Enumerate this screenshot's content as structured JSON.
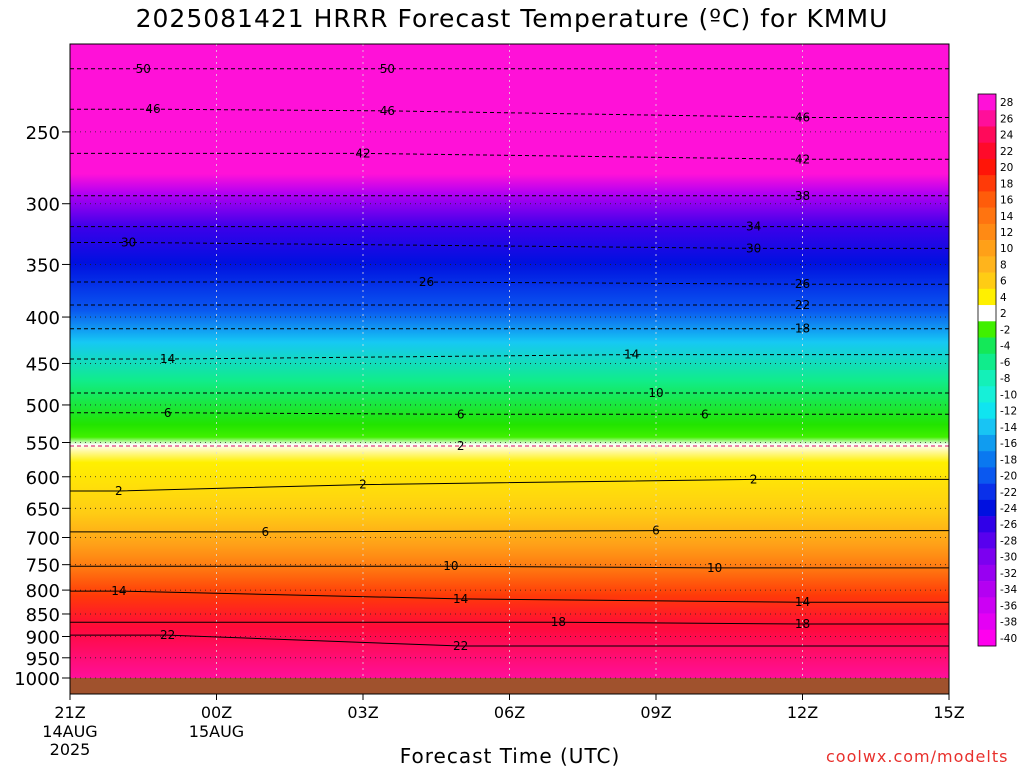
{
  "chart_data": {
    "type": "heatmap",
    "title": "2025081421 HRRR Forecast Temperature (ºC) for KMMU",
    "xlabel": "Forecast Time (UTC)",
    "credit": "coolwx.com/modelts",
    "x_ticks": [
      {
        "label": "21Z",
        "sub": [
          "14AUG",
          "2025"
        ],
        "hour": 0
      },
      {
        "label": "00Z",
        "sub": [
          "15AUG"
        ],
        "hour": 3
      },
      {
        "label": "03Z",
        "sub": [],
        "hour": 6
      },
      {
        "label": "06Z",
        "sub": [],
        "hour": 9
      },
      {
        "label": "09Z",
        "sub": [],
        "hour": 12
      },
      {
        "label": "12Z",
        "sub": [],
        "hour": 15
      },
      {
        "label": "15Z",
        "sub": [],
        "hour": 18
      }
    ],
    "y_ticks": [
      250,
      300,
      350,
      400,
      450,
      500,
      550,
      600,
      650,
      700,
      750,
      800,
      850,
      900,
      950,
      1000
    ],
    "xlim": [
      0,
      18
    ],
    "ylim_hpa": [
      1000,
      200
    ],
    "colorbar": {
      "labels": [
        "28",
        "26",
        "24",
        "22",
        "20",
        "18",
        "16",
        "14",
        "12",
        "10",
        "8",
        "6",
        "4",
        "2",
        "-2",
        "-4",
        "-6",
        "-8",
        "-10",
        "-12",
        "-14",
        "-16",
        "-18",
        "-20",
        "-22",
        "-24",
        "-26",
        "-28",
        "-30",
        "-32",
        "-34",
        "-36",
        "-38",
        "-40"
      ],
      "colors": [
        "#ff11d8",
        "#ff0f9a",
        "#ff0a5a",
        "#ff0a2a",
        "#ff1508",
        "#ff3a08",
        "#ff5c0a",
        "#ff7410",
        "#ff8a14",
        "#ffa018",
        "#ffb41c",
        "#ffcc14",
        "#fff000",
        "#ffffff",
        "#40f000",
        "#14e858",
        "#10ec8c",
        "#14f0b8",
        "#16f0d8",
        "#10e4f0",
        "#18c4f4",
        "#109cf0",
        "#0a78f0",
        "#0a58f0",
        "#0a30ea",
        "#0010e0",
        "#3000e8",
        "#5800ee",
        "#7c00f0",
        "#9800f2",
        "#b400f2",
        "#cc00f4",
        "#e400f4",
        "#ff00ee"
      ]
    },
    "series": [
      {
        "name": "-50",
        "values": [
          {
            "x": 1.5,
            "p": 213
          },
          {
            "x": 6.5,
            "p": 213
          }
        ]
      },
      {
        "name": "-46",
        "values": [
          {
            "x": 1.7,
            "p": 236
          },
          {
            "x": 6.5,
            "p": 237
          },
          {
            "x": 15,
            "p": 241
          }
        ]
      },
      {
        "name": "-42",
        "values": [
          {
            "x": 6,
            "p": 264
          },
          {
            "x": 15,
            "p": 268
          }
        ]
      },
      {
        "name": "-38",
        "values": [
          {
            "x": 15,
            "p": 294
          }
        ]
      },
      {
        "name": "-34",
        "values": [
          {
            "x": 14,
            "p": 318
          }
        ]
      },
      {
        "name": "-30",
        "values": [
          {
            "x": 1.2,
            "p": 331
          },
          {
            "x": 14,
            "p": 336
          }
        ]
      },
      {
        "name": "-26",
        "values": [
          {
            "x": 7.3,
            "p": 366
          },
          {
            "x": 15,
            "p": 368
          }
        ]
      },
      {
        "name": "-22",
        "values": [
          {
            "x": 15,
            "p": 388
          }
        ]
      },
      {
        "name": "-18",
        "values": [
          {
            "x": 15,
            "p": 412
          }
        ]
      },
      {
        "name": "-14",
        "values": [
          {
            "x": 2,
            "p": 445
          },
          {
            "x": 11.5,
            "p": 440
          }
        ]
      },
      {
        "name": "-10",
        "values": [
          {
            "x": 12,
            "p": 485
          }
        ]
      },
      {
        "name": "-6",
        "values": [
          {
            "x": 2,
            "p": 510
          },
          {
            "x": 8,
            "p": 512
          },
          {
            "x": 13,
            "p": 512
          }
        ]
      },
      {
        "name": "-2",
        "values": [
          {
            "x": 8,
            "p": 555
          }
        ]
      },
      {
        "name": "2",
        "values": [
          {
            "x": 1,
            "p": 622
          },
          {
            "x": 6,
            "p": 612
          },
          {
            "x": 14,
            "p": 604
          }
        ]
      },
      {
        "name": "6",
        "values": [
          {
            "x": 4,
            "p": 690
          },
          {
            "x": 12,
            "p": 688
          }
        ]
      },
      {
        "name": "10",
        "values": [
          {
            "x": 7.8,
            "p": 753
          },
          {
            "x": 13.2,
            "p": 756
          }
        ]
      },
      {
        "name": "14",
        "values": [
          {
            "x": 1,
            "p": 802
          },
          {
            "x": 8,
            "p": 818
          },
          {
            "x": 15,
            "p": 825
          }
        ]
      },
      {
        "name": "18",
        "values": [
          {
            "x": 10,
            "p": 868
          },
          {
            "x": 15,
            "p": 872
          }
        ]
      },
      {
        "name": "22",
        "values": [
          {
            "x": 2,
            "p": 897
          },
          {
            "x": 8,
            "p": 922
          }
        ]
      }
    ],
    "legend": "right",
    "grid": true
  }
}
